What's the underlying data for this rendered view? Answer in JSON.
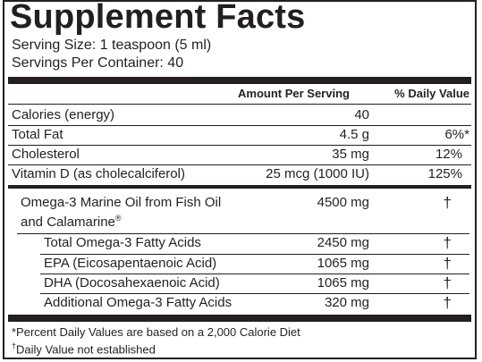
{
  "title": "Supplement Facts",
  "serving_size": "Serving Size: 1 teaspoon (5 ml)",
  "servings_per_container": "Servings Per Container: 40",
  "headers": {
    "amount": "Amount Per Serving",
    "daily_value": "% Daily Value"
  },
  "rows_top": [
    {
      "name": "Calories (energy)",
      "amount": "40",
      "dv": ""
    },
    {
      "name": "Total Fat",
      "amount": "4.5 g",
      "dv": "6%*"
    },
    {
      "name": "Cholesterol",
      "amount": "35 mg",
      "dv": "12%"
    },
    {
      "name": "Vitamin D (as cholecalciferol)",
      "amount": "25 mcg (1000 IU)",
      "dv": "125%"
    }
  ],
  "omega": {
    "name_line1": "Omega-3 Marine Oil from Fish Oil",
    "name_line2": "and Calamarine",
    "reg_mark": "®",
    "amount": "4500 mg",
    "dv": "†"
  },
  "rows_sub": [
    {
      "name": "Total Omega-3 Fatty Acids",
      "amount": "2450 mg",
      "dv": "†"
    },
    {
      "name": "EPA (Eicosapentaenoic Acid)",
      "amount": "1065 mg",
      "dv": "†"
    },
    {
      "name": "DHA (Docosahexaenoic Acid)",
      "amount": "1065 mg",
      "dv": "†"
    },
    {
      "name": "Additional Omega-3 Fatty Acids",
      "amount": "320 mg",
      "dv": "†"
    }
  ],
  "footnotes": {
    "percent_dv": "*Percent Daily Values are based on a 2,000 Calorie Diet",
    "dagger_mark": "†",
    "dagger_text": "Daily Value not established"
  }
}
